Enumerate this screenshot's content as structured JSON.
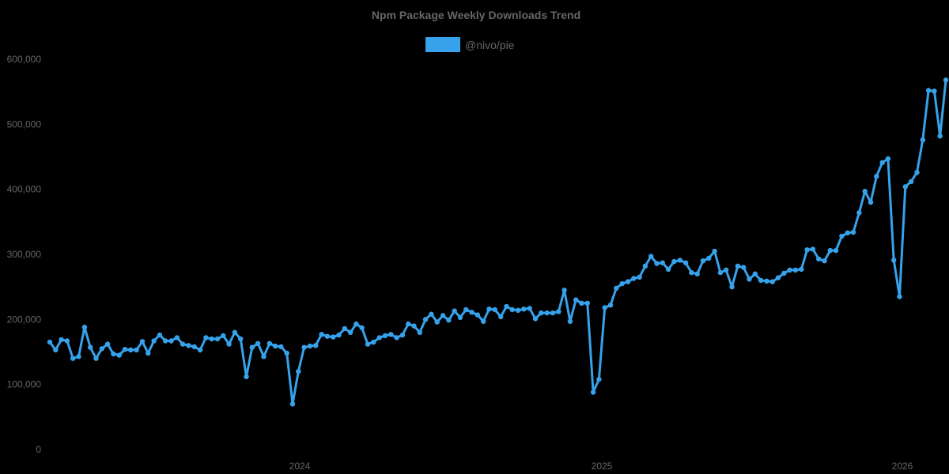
{
  "chart_data": {
    "type": "line",
    "title": "Npm Package Weekly Downloads Trend",
    "xlabel": "",
    "ylabel": "",
    "ylim": [
      0,
      600000
    ],
    "yticks": [
      "0",
      "100,000",
      "200,000",
      "300,000",
      "400,000",
      "500,000",
      "600,000"
    ],
    "xticks": [
      "2024",
      "2025",
      "2026"
    ],
    "grid": false,
    "legend_position": "top",
    "series": [
      {
        "name": "@nivo/pie",
        "color": "#36a2eb",
        "values": [
          165000,
          153000,
          169000,
          167000,
          140000,
          143000,
          188000,
          157000,
          140000,
          155000,
          162000,
          147000,
          145000,
          154000,
          153000,
          153000,
          166000,
          148000,
          167000,
          176000,
          167000,
          167000,
          172000,
          162000,
          160000,
          158000,
          153000,
          172000,
          170000,
          170000,
          175000,
          162000,
          180000,
          170000,
          112000,
          157000,
          163000,
          143000,
          163000,
          159000,
          158000,
          148000,
          70000,
          120000,
          157000,
          159000,
          160000,
          177000,
          174000,
          173000,
          176000,
          186000,
          180000,
          193000,
          187000,
          162000,
          165000,
          172000,
          175000,
          177000,
          172000,
          176000,
          193000,
          190000,
          180000,
          200000,
          208000,
          196000,
          206000,
          199000,
          213000,
          203000,
          215000,
          211000,
          207000,
          197000,
          216000,
          215000,
          204000,
          220000,
          215000,
          214000,
          216000,
          217000,
          201000,
          210000,
          210000,
          210000,
          212000,
          245000,
          197000,
          230000,
          225000,
          225000,
          88000,
          108000,
          218000,
          222000,
          248000,
          255000,
          258000,
          263000,
          265000,
          282000,
          297000,
          286000,
          287000,
          277000,
          289000,
          291000,
          287000,
          272000,
          270000,
          290000,
          294000,
          305000,
          272000,
          276000,
          250000,
          282000,
          280000,
          262000,
          270000,
          260000,
          259000,
          258000,
          264000,
          271000,
          276000,
          276000,
          277000,
          307000,
          308000,
          293000,
          290000,
          306000,
          306000,
          328000,
          333000,
          334000,
          364000,
          397000,
          380000,
          420000,
          441000,
          447000,
          291000,
          235000,
          404000,
          412000,
          426000,
          476000,
          552000,
          551000,
          482000,
          568000
        ]
      }
    ]
  },
  "legend": {
    "label": "@nivo/pie",
    "color": "#36a2eb"
  }
}
